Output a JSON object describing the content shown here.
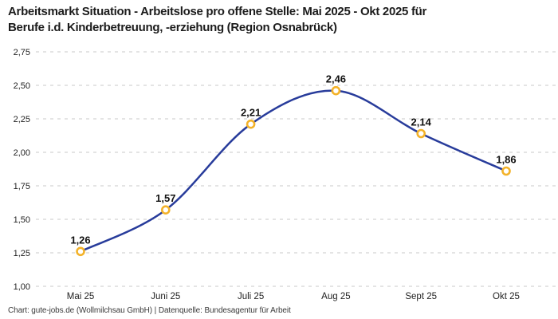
{
  "page": {
    "title_line1": "Arbeitsmarkt Situation - Arbeitslose pro offene Stelle: Mai 2025 - Okt 2025 für",
    "title_line2": "Berufe i.d. Kinderbetreuung, -erziehung (Region Osnabrück)",
    "credit": "Chart: gute-jobs.de (Wollmilchsau GmbH) | Datenquelle: Bundesagentur für Arbeit"
  },
  "colors": {
    "line": "#283c9b",
    "marker": "#f3b229",
    "marker_fill": "#ffffff",
    "grid": "#c9c9c9",
    "axis_text": "#222222",
    "label_text": "#111111"
  },
  "chart_data": {
    "type": "line",
    "title": "Arbeitsmarkt Situation - Arbeitslose pro offene Stelle: Mai 2025 - Okt 2025 für Berufe i.d. Kinderbetreuung, -erziehung (Region Osnabrück)",
    "categories": [
      "Mai 25",
      "Juni 25",
      "Juli 25",
      "Aug 25",
      "Sept 25",
      "Okt 25"
    ],
    "values": [
      1.26,
      1.57,
      2.21,
      2.46,
      2.14,
      1.86
    ],
    "value_labels": [
      "1,26",
      "1,57",
      "2,21",
      "2,46",
      "2,14",
      "1,86"
    ],
    "ylim": [
      1.0,
      2.75
    ],
    "yticks": [
      1.0,
      1.25,
      1.5,
      1.75,
      2.0,
      2.25,
      2.5,
      2.75
    ],
    "ytick_labels": [
      "1,00",
      "1,25",
      "1,50",
      "1,75",
      "2,00",
      "2,25",
      "2,50",
      "2,75"
    ],
    "xlabel": "",
    "ylabel": "",
    "grid": "dashed-horizontal",
    "legend": "none",
    "curve": "smooth",
    "marker": "open-circle"
  }
}
